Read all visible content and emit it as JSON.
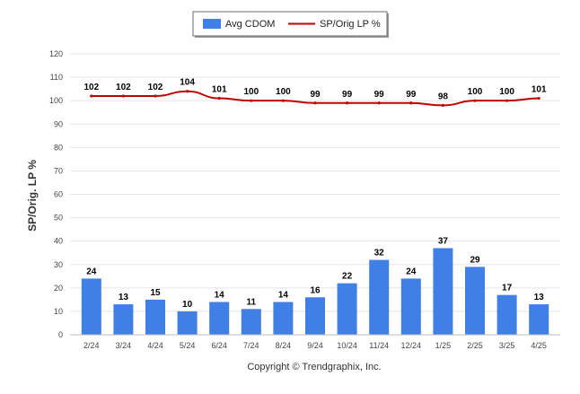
{
  "chart_data": {
    "type": "bar",
    "categories": [
      "2/24",
      "3/24",
      "4/24",
      "5/24",
      "6/24",
      "7/24",
      "8/24",
      "9/24",
      "10/24",
      "11/24",
      "12/24",
      "1/25",
      "2/25",
      "3/25",
      "4/25"
    ],
    "series": [
      {
        "name": "Avg CDOM",
        "type": "bar",
        "color": "#3f7fe6",
        "values": [
          24,
          13,
          15,
          10,
          14,
          11,
          14,
          16,
          22,
          32,
          24,
          37,
          29,
          17,
          13
        ]
      },
      {
        "name": "SP/Orig LP %",
        "type": "line",
        "color": "#c00000",
        "values": [
          102,
          102,
          102,
          104,
          101,
          100,
          100,
          99,
          99,
          99,
          99,
          98,
          100,
          100,
          101
        ]
      }
    ],
    "title": "",
    "xlabel": "",
    "ylabel": "SP/Orig. LP %",
    "ylim": [
      0,
      120
    ],
    "yticks": [
      0,
      10,
      20,
      30,
      40,
      50,
      60,
      70,
      80,
      90,
      100,
      110,
      120
    ],
    "grid": true,
    "legend_position": "top-center"
  },
  "footer": "Copyright © Trendgraphix, Inc."
}
